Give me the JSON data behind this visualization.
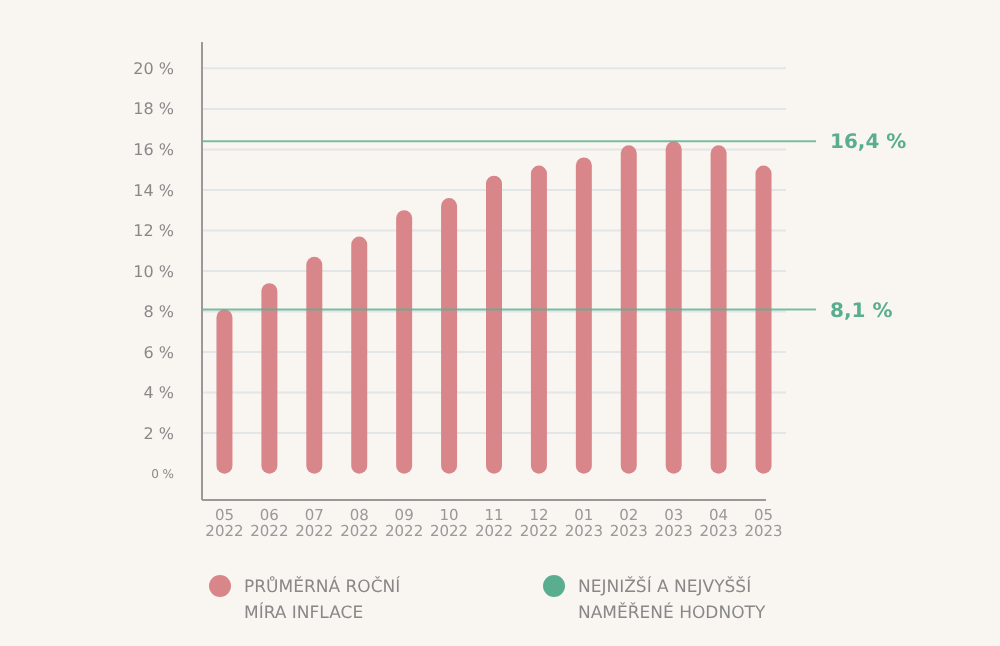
{
  "chart_data": {
    "type": "bar",
    "categories": [
      "05 2022",
      "06 2022",
      "07 2022",
      "08 2022",
      "09 2022",
      "10 2022",
      "11 2022",
      "12 2022",
      "01 2023",
      "02 2023",
      "03 2023",
      "04 2023",
      "05 2023"
    ],
    "series": [
      {
        "name": "PRŮMĚRNÁ ROČNÍ MÍRA INFLACE",
        "color": "#d9868a",
        "values": [
          8.1,
          9.4,
          10.7,
          11.7,
          13.0,
          13.6,
          14.7,
          15.2,
          15.6,
          16.2,
          16.4,
          16.2,
          15.2
        ]
      }
    ],
    "ylim": [
      -1.3,
      21.3
    ],
    "yticks": [
      {
        "value": 0,
        "label": "0 %"
      },
      {
        "value": 2,
        "label": "2 %"
      },
      {
        "value": 4,
        "label": "4 %"
      },
      {
        "value": 6,
        "label": "6 %"
      },
      {
        "value": 8,
        "label": "8 %"
      },
      {
        "value": 10,
        "label": "10 %"
      },
      {
        "value": 12,
        "label": "12 %"
      },
      {
        "value": 14,
        "label": "14 %"
      },
      {
        "value": 16,
        "label": "16 %"
      },
      {
        "value": 18,
        "label": "18 %"
      },
      {
        "value": 20,
        "label": "20 %"
      }
    ],
    "grid": "y",
    "legend": "bottom",
    "ref_lines": [
      {
        "axis": "y",
        "value": 8.1,
        "label": "8,1 %",
        "color": "#5aae8f"
      },
      {
        "axis": "y",
        "value": 16.4,
        "label": "16,4 %",
        "color": "#5aae8f"
      }
    ],
    "annotations": [
      "NEJNIŽŠÍ A NEJVYŠŠÍ NAMĚŘENÉ HODNOTY"
    ]
  }
}
